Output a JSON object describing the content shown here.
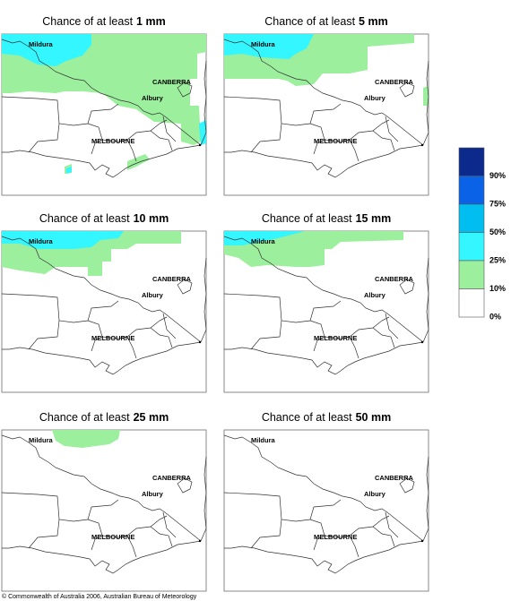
{
  "panels": [
    {
      "prefix": "Chance of at least",
      "amount": "1 mm"
    },
    {
      "prefix": "Chance of at least",
      "amount": "5 mm"
    },
    {
      "prefix": "Chance of at least",
      "amount": "10 mm"
    },
    {
      "prefix": "Chance of at least",
      "amount": "15 mm"
    },
    {
      "prefix": "Chance of at least",
      "amount": "25 mm"
    },
    {
      "prefix": "Chance of at least",
      "amount": "50 mm"
    }
  ],
  "places": {
    "mildura": "Mildura",
    "canberra": "CANBERRA",
    "albury": "Albury",
    "melbourne": "MELBOURNE"
  },
  "legend": {
    "labels": [
      "90%",
      "75%",
      "50%",
      "25%",
      "10%",
      "0%"
    ],
    "colors": [
      "#0b2a8c",
      "#0a62e6",
      "#00bff0",
      "#33f6ff",
      "#9cef9c",
      "#ffffff"
    ]
  },
  "copyright": "© Commonwealth of Australia 2006, Australian Bureau of Meteorology"
}
